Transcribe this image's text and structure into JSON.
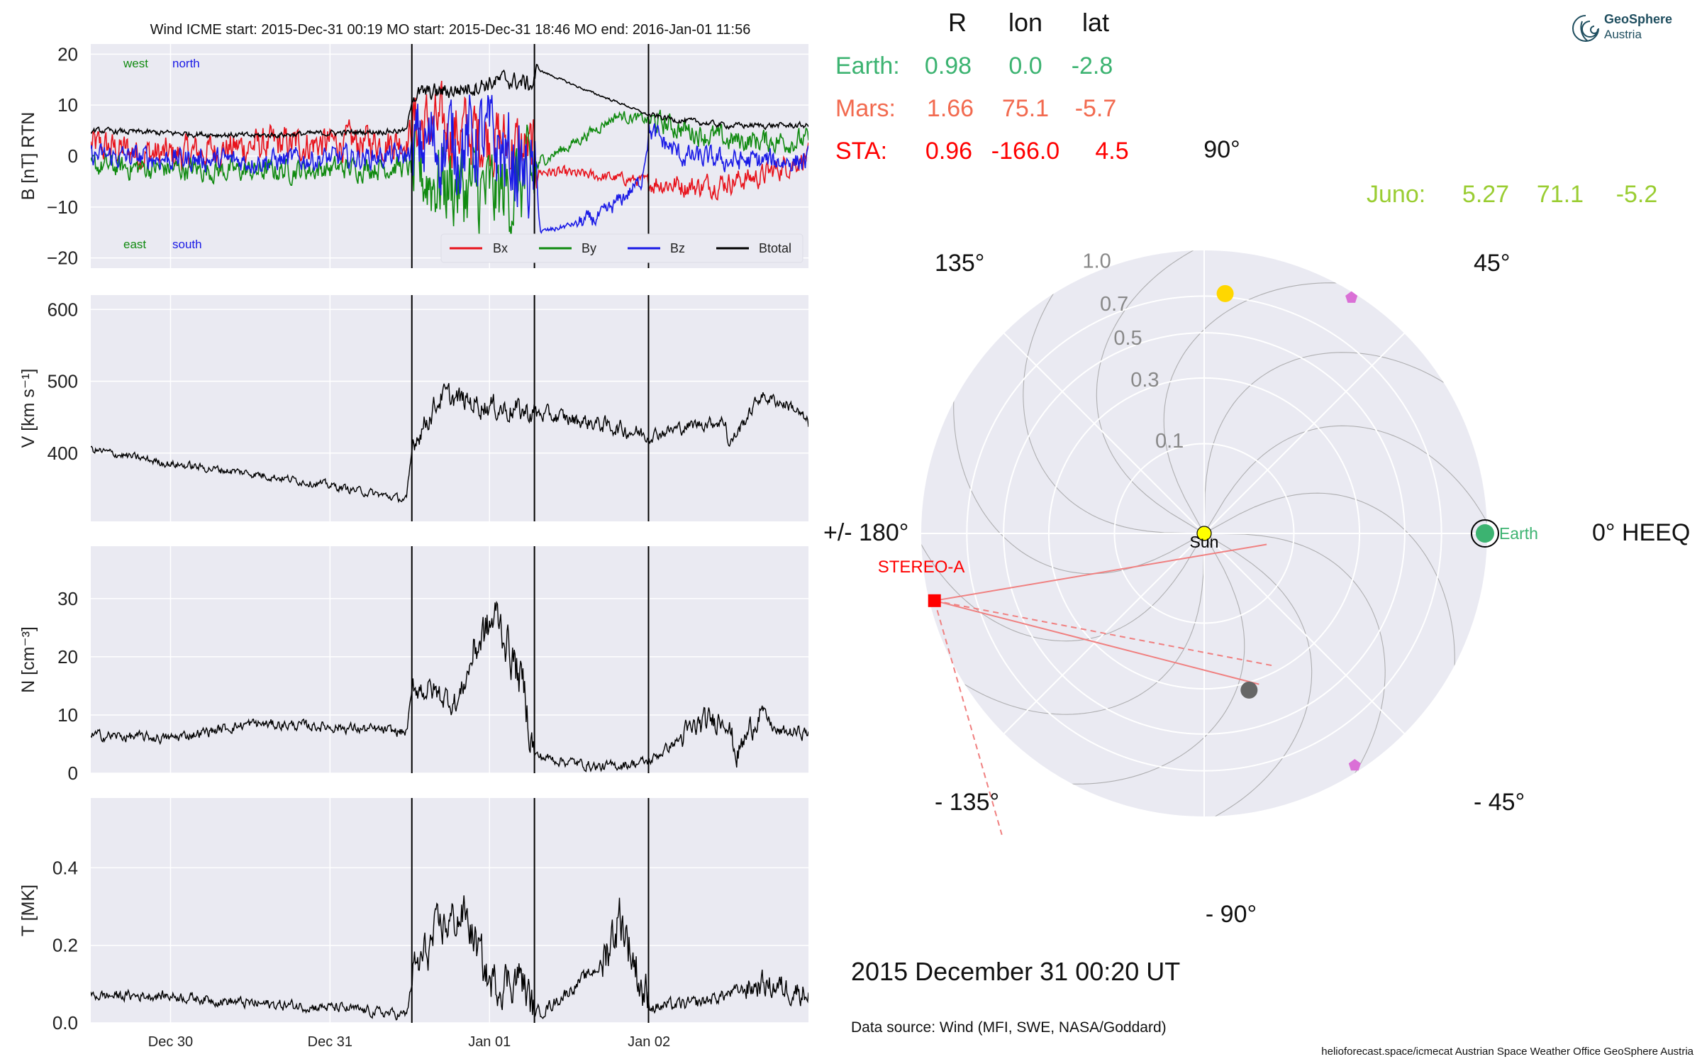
{
  "colors": {
    "panel_bg": "#EAEAF2",
    "bx": "#E8131C",
    "by": "#108A10",
    "bz": "#1A1AE6",
    "btotal": "#000000",
    "earth": "#3CB371",
    "mars": "#F26A4F",
    "sta": "#FF0000",
    "juno": "#9ACD32",
    "sun": "#FFFF00",
    "venus": "#FFD700",
    "mercury": "#666666",
    "psp": "#DA70D6"
  },
  "header": {
    "text": "Wind     ICME start: 2015-Dec-31 00:19   MO start: 2015-Dec-31 18:46   MO end: 2016-Jan-01 11:56"
  },
  "ts": {
    "x_ticks": [
      "Dec 30",
      "Dec 31",
      "Jan 01",
      "Jan 02"
    ],
    "x_tick_pos_days": [
      0.5,
      1.5,
      2.5,
      3.5
    ],
    "x_range_days": [
      0,
      4.5
    ],
    "event_lines_days": [
      2.0132,
      2.7819,
      3.4972
    ],
    "panels": [
      {
        "id": "b",
        "ylabel": "B [nT] RTN",
        "ylim": [
          -22,
          22
        ],
        "yticks": [
          20,
          10,
          0,
          -10,
          -20
        ],
        "ytick_labels": [
          "20",
          "10",
          "0",
          "−10",
          "−20"
        ],
        "corner_labels": {
          "west": "west",
          "north": "north",
          "east": "east",
          "south": "south"
        },
        "legend": [
          "Bx",
          "By",
          "Bz",
          "Btotal"
        ],
        "series": [
          {
            "name": "Btotal",
            "key": "btotal",
            "kp": [
              [
                0,
                5
              ],
              [
                1,
                4
              ],
              [
                1.98,
                5
              ],
              [
                2.02,
                12
              ],
              [
                2.3,
                13
              ],
              [
                2.6,
                15
              ],
              [
                2.77,
                14
              ],
              [
                2.8,
                17
              ],
              [
                3.1,
                13
              ],
              [
                3.35,
                10
              ],
              [
                3.5,
                8
              ],
              [
                3.7,
                7
              ],
              [
                4,
                6
              ],
              [
                4.5,
                6
              ]
            ],
            "noise": [
              [
                0,
                0.5
              ],
              [
                2.02,
                1.5
              ],
              [
                2.8,
                0.2
              ],
              [
                3.5,
                0.5
              ]
            ]
          },
          {
            "name": "Bx",
            "key": "bx",
            "kp": [
              [
                0,
                2
              ],
              [
                0.5,
                0
              ],
              [
                1,
                2
              ],
              [
                1.98,
                3
              ],
              [
                2.02,
                6
              ],
              [
                2.5,
                4
              ],
              [
                2.78,
                0
              ],
              [
                2.82,
                -3
              ],
              [
                3.2,
                -4
              ],
              [
                3.5,
                -5
              ],
              [
                3.8,
                -6
              ],
              [
                4.2,
                -4
              ],
              [
                4.5,
                0
              ]
            ],
            "noise": [
              [
                0,
                3
              ],
              [
                2.02,
                6
              ],
              [
                2.8,
                1
              ],
              [
                3.5,
                2
              ]
            ]
          },
          {
            "name": "By",
            "key": "by",
            "kp": [
              [
                0,
                -2
              ],
              [
                1,
                -3
              ],
              [
                1.98,
                -2
              ],
              [
                2.02,
                -3
              ],
              [
                2.5,
                -8
              ],
              [
                2.78,
                -5
              ],
              [
                2.82,
                -1
              ],
              [
                3.0,
                2
              ],
              [
                3.3,
                8
              ],
              [
                3.5,
                7
              ],
              [
                4,
                3
              ],
              [
                4.5,
                3
              ]
            ],
            "noise": [
              [
                0,
                2
              ],
              [
                2.02,
                8
              ],
              [
                2.8,
                1
              ],
              [
                3.5,
                2
              ]
            ]
          },
          {
            "name": "Bz",
            "key": "bz",
            "kp": [
              [
                0,
                0
              ],
              [
                1,
                -1
              ],
              [
                1.98,
                0
              ],
              [
                2.02,
                2
              ],
              [
                2.5,
                3
              ],
              [
                2.78,
                -5
              ],
              [
                2.82,
                -15
              ],
              [
                3.2,
                -12
              ],
              [
                3.45,
                -5
              ],
              [
                3.5,
                5
              ],
              [
                3.7,
                0
              ],
              [
                4,
                -1
              ],
              [
                4.5,
                -1
              ]
            ],
            "noise": [
              [
                0,
                2
              ],
              [
                2.02,
                8
              ],
              [
                2.8,
                0.5
              ],
              [
                3.05,
                1.5
              ],
              [
                3.5,
                2
              ]
            ]
          }
        ]
      },
      {
        "id": "v",
        "ylabel": "V [km s⁻¹]",
        "ylim": [
          305,
          620
        ],
        "yticks": [
          600,
          500,
          400
        ],
        "ytick_labels": [
          "600",
          "500",
          "400"
        ],
        "series": [
          {
            "name": "V",
            "key": "btotal",
            "kp": [
              [
                0,
                405
              ],
              [
                0.5,
                385
              ],
              [
                1,
                372
              ],
              [
                1.5,
                355
              ],
              [
                1.98,
                335
              ],
              [
                2.02,
                415
              ],
              [
                2.2,
                480
              ],
              [
                2.5,
                465
              ],
              [
                2.8,
                455
              ],
              [
                3.2,
                440
              ],
              [
                3.5,
                425
              ],
              [
                3.8,
                440
              ],
              [
                3.98,
                445
              ],
              [
                4.0,
                410
              ],
              [
                4.2,
                480
              ],
              [
                4.4,
                465
              ],
              [
                4.5,
                440
              ]
            ],
            "noise": [
              [
                0,
                5
              ],
              [
                2.02,
                15
              ],
              [
                2.8,
                10
              ],
              [
                3.5,
                8
              ]
            ]
          }
        ]
      },
      {
        "id": "n",
        "ylabel": "N [cm⁻³]",
        "ylim": [
          0,
          39
        ],
        "yticks": [
          30,
          20,
          10,
          0
        ],
        "ytick_labels": [
          "30",
          "20",
          "10",
          "0"
        ],
        "series": [
          {
            "name": "N",
            "key": "btotal",
            "kp": [
              [
                0,
                6.5
              ],
              [
                0.5,
                6
              ],
              [
                1,
                8.5
              ],
              [
                1.5,
                8
              ],
              [
                1.98,
                7
              ],
              [
                2.02,
                15
              ],
              [
                2.15,
                14
              ],
              [
                2.3,
                12
              ],
              [
                2.42,
                22
              ],
              [
                2.55,
                27
              ],
              [
                2.72,
                14
              ],
              [
                2.78,
                3
              ],
              [
                3.2,
                1
              ],
              [
                3.5,
                2
              ],
              [
                3.8,
                8
              ],
              [
                3.98,
                10
              ],
              [
                4.05,
                3
              ],
              [
                4.2,
                11
              ],
              [
                4.3,
                7
              ],
              [
                4.5,
                7
              ]
            ],
            "noise": [
              [
                0,
                0.8
              ],
              [
                2.02,
                2
              ],
              [
                2.4,
                3.5
              ],
              [
                2.78,
                0.8
              ],
              [
                3.7,
                2
              ],
              [
                4.2,
                1
              ]
            ]
          }
        ]
      },
      {
        "id": "t",
        "ylabel": "T [MK]",
        "ylim": [
          0,
          0.58
        ],
        "yticks": [
          0.4,
          0.2,
          0.0
        ],
        "ytick_labels": [
          "0.4",
          "0.2",
          "0.0"
        ],
        "series": [
          {
            "name": "T",
            "key": "btotal",
            "kp": [
              [
                0,
                0.07
              ],
              [
                0.5,
                0.07
              ],
              [
                1,
                0.05
              ],
              [
                1.5,
                0.04
              ],
              [
                1.98,
                0.02
              ],
              [
                2.02,
                0.12
              ],
              [
                2.2,
                0.25
              ],
              [
                2.35,
                0.28
              ],
              [
                2.5,
                0.1
              ],
              [
                2.7,
                0.12
              ],
              [
                2.78,
                0.02
              ],
              [
                2.9,
                0.05
              ],
              [
                3.2,
                0.15
              ],
              [
                3.32,
                0.28
              ],
              [
                3.45,
                0.1
              ],
              [
                3.5,
                0.04
              ],
              [
                3.8,
                0.05
              ],
              [
                4.2,
                0.1
              ],
              [
                4.5,
                0.08
              ]
            ],
            "noise": [
              [
                0,
                0.012
              ],
              [
                2.02,
                0.05
              ],
              [
                2.78,
                0.015
              ],
              [
                3.2,
                0.06
              ],
              [
                3.5,
                0.015
              ],
              [
                4.1,
                0.03
              ]
            ]
          }
        ]
      }
    ]
  },
  "table": {
    "headers": [
      "R",
      "lon",
      "lat"
    ],
    "rows": [
      {
        "name": "Earth:",
        "r": "0.98",
        "lon": "0.0",
        "lat": "-2.8",
        "key": "earth"
      },
      {
        "name": "Mars:",
        "r": "1.66",
        "lon": "75.1",
        "lat": "-5.7",
        "key": "mars"
      },
      {
        "name": "STA:",
        "r": "0.96",
        "lon": "-166.0",
        "lat": "4.5",
        "key": "sta"
      }
    ],
    "juno": {
      "name": "Juno:",
      "r": "5.27",
      "lon": "71.1",
      "lat": "-5.2"
    }
  },
  "polar": {
    "r_ticks": [
      "0.1",
      "0.3",
      "0.5",
      "0.7",
      "1.0"
    ],
    "angle_labels": {
      "a0": "0° HEEQ",
      "a45": "45°",
      "a90": "90°",
      "a135": "135°",
      "a180": "+/- 180°",
      "am135": "- 135°",
      "am90": "- 90°",
      "am45": "- 45°"
    },
    "bodies": [
      {
        "name": "Sun",
        "r": 0.0,
        "lon": 0,
        "key": "sun",
        "label": "Sun"
      },
      {
        "name": "Earth",
        "r": 0.98,
        "lon": 0.0,
        "key": "earth",
        "label": "Earth"
      },
      {
        "name": "STEREO-A",
        "r": 0.96,
        "lon": -166.0,
        "key": "sta",
        "label": "STEREO-A"
      },
      {
        "name": "Venus",
        "r": 0.72,
        "lon": 85,
        "key": "venus",
        "label": ""
      },
      {
        "name": "Mercury",
        "r": 0.33,
        "lon": -74,
        "key": "mercury",
        "label": ""
      },
      {
        "name": "PSP-1",
        "r": 0.96,
        "lon": 58,
        "key": "psp",
        "label": ""
      },
      {
        "name": "PSP-2",
        "r": 0.95,
        "lon": -57,
        "key": "psp",
        "label": ""
      }
    ]
  },
  "footer": {
    "timestamp": "2015 December 31  00:20 UT",
    "source": "Data source: Wind (MFI, SWE, NASA/Goddard)",
    "credits": "helioforecast.space/icmecat   Austrian Space Weather Office   GeoSphere Austria"
  },
  "logo": {
    "line1": "GeoSphere",
    "line2": "Austria"
  },
  "chart_data": {
    "type": "line",
    "title": "Wind     ICME start: 2015-Dec-31 00:19   MO start: 2015-Dec-31 18:46   MO end: 2016-Jan-01 11:56",
    "x_ticks": [
      "Dec 30",
      "Dec 31",
      "Jan 01",
      "Jan 02"
    ],
    "event_times": [
      "2015-12-31 00:19",
      "2015-12-31 18:46",
      "2016-01-01 11:56"
    ],
    "panels": [
      {
        "ylabel": "B [nT] RTN",
        "ylim": [
          -22,
          22
        ],
        "series": [
          {
            "name": "Bx",
            "values_summary": "about 0-3 nT before ICME, up to +10 in sheath, about -5 in MO"
          },
          {
            "name": "By",
            "values_summary": "about -3 nT before ICME, down to -15 in sheath, rising to +8 after MO end"
          },
          {
            "name": "Bz",
            "values_summary": "about 0 before ICME, strongly fluctuating in sheath, about -15 in MO"
          },
          {
            "name": "Btotal",
            "values_summary": "about 5 nT before ICME, 12-16 nT in sheath, peak about 17 at MO start, decreasing to 6"
          }
        ]
      },
      {
        "ylabel": "V [km s⁻¹]",
        "ylim": [
          305,
          620
        ],
        "values_summary": "about 405 decreasing to 335 before ICME, jump to 480-520, about 450 in MO, 430-490 after"
      },
      {
        "ylabel": "N [cm⁻³]",
        "ylim": [
          0,
          39
        ],
        "values_summary": "about 6-9 before ICME, 15-30 in sheath, about 1-3 in MO, 5-15 after"
      },
      {
        "ylabel": "T [MK]",
        "ylim": [
          0,
          0.58
        ],
        "values_summary": "about 0.07 before ICME, up to 0.37 in sheath, about 0.05 in MO with spike near 0.37 before MO end"
      }
    ]
  }
}
